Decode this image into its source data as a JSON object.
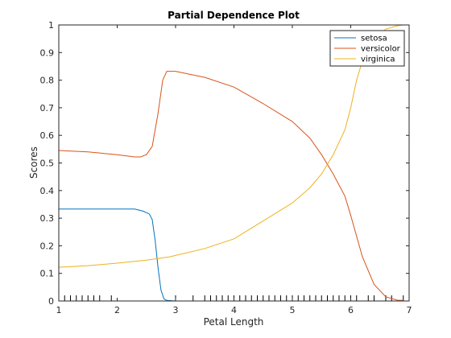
{
  "chart_data": {
    "type": "line",
    "title": "Partial Dependence Plot",
    "xlabel": "Petal Length",
    "ylabel": "Scores",
    "xlim": [
      1,
      7
    ],
    "ylim": [
      0,
      1
    ],
    "x_ticks": [
      1,
      2,
      3,
      4,
      5,
      6,
      7
    ],
    "y_ticks": [
      0,
      0.1,
      0.2,
      0.3,
      0.4,
      0.5,
      0.6,
      0.7,
      0.8,
      0.9,
      1
    ],
    "x_tick_labels": [
      "1",
      "2",
      "3",
      "4",
      "5",
      "6",
      "7"
    ],
    "y_tick_labels": [
      "0",
      "0.1",
      "0.2",
      "0.3",
      "0.4",
      "0.5",
      "0.6",
      "0.7",
      "0.8",
      "0.9",
      "1"
    ],
    "grid": false,
    "legend_position": "top-right",
    "series": [
      {
        "name": "setosa",
        "color": "#0072BD",
        "points": [
          [
            1,
            0.333
          ],
          [
            1.5,
            0.333
          ],
          [
            2.0,
            0.333
          ],
          [
            2.3,
            0.333
          ],
          [
            2.45,
            0.325
          ],
          [
            2.55,
            0.315
          ],
          [
            2.6,
            0.295
          ],
          [
            2.65,
            0.22
          ],
          [
            2.7,
            0.12
          ],
          [
            2.75,
            0.04
          ],
          [
            2.8,
            0.008
          ],
          [
            2.85,
            0.002
          ],
          [
            3.0,
            0
          ],
          [
            4.0,
            0
          ],
          [
            5.0,
            0
          ],
          [
            6.0,
            0
          ],
          [
            6.9,
            0
          ]
        ]
      },
      {
        "name": "versicolor",
        "color": "#D95319",
        "points": [
          [
            1,
            0.545
          ],
          [
            1.5,
            0.54
          ],
          [
            2.0,
            0.53
          ],
          [
            2.3,
            0.522
          ],
          [
            2.4,
            0.522
          ],
          [
            2.5,
            0.53
          ],
          [
            2.6,
            0.56
          ],
          [
            2.7,
            0.68
          ],
          [
            2.78,
            0.8
          ],
          [
            2.85,
            0.832
          ],
          [
            3.0,
            0.832
          ],
          [
            3.5,
            0.81
          ],
          [
            4.0,
            0.775
          ],
          [
            4.5,
            0.715
          ],
          [
            5.0,
            0.65
          ],
          [
            5.3,
            0.59
          ],
          [
            5.5,
            0.53
          ],
          [
            5.7,
            0.46
          ],
          [
            5.9,
            0.38
          ],
          [
            6.0,
            0.31
          ],
          [
            6.2,
            0.16
          ],
          [
            6.4,
            0.06
          ],
          [
            6.6,
            0.015
          ],
          [
            6.8,
            0.003
          ],
          [
            6.9,
            0.002
          ]
        ]
      },
      {
        "name": "virginica",
        "color": "#EDB120",
        "points": [
          [
            1,
            0.122
          ],
          [
            1.5,
            0.128
          ],
          [
            2.0,
            0.137
          ],
          [
            2.5,
            0.148
          ],
          [
            2.9,
            0.16
          ],
          [
            3.0,
            0.165
          ],
          [
            3.5,
            0.19
          ],
          [
            4.0,
            0.225
          ],
          [
            4.5,
            0.29
          ],
          [
            5.0,
            0.355
          ],
          [
            5.3,
            0.41
          ],
          [
            5.5,
            0.46
          ],
          [
            5.7,
            0.53
          ],
          [
            5.9,
            0.62
          ],
          [
            6.0,
            0.7
          ],
          [
            6.1,
            0.8
          ],
          [
            6.2,
            0.87
          ],
          [
            6.4,
            0.95
          ],
          [
            6.6,
            0.985
          ],
          [
            6.8,
            0.997
          ],
          [
            6.9,
            1.0
          ]
        ]
      }
    ],
    "rug_x": [
      1.0,
      1.1,
      1.2,
      1.3,
      1.4,
      1.5,
      1.6,
      1.7,
      1.9,
      3.0,
      3.3,
      3.5,
      3.6,
      3.7,
      3.8,
      3.9,
      4.0,
      4.1,
      4.2,
      4.3,
      4.4,
      4.5,
      4.6,
      4.7,
      4.8,
      4.9,
      5.0,
      5.1,
      5.2,
      5.3,
      5.4,
      5.5,
      5.6,
      5.7,
      5.8,
      5.9,
      6.0,
      6.1,
      6.3,
      6.4,
      6.6,
      6.7,
      6.9
    ]
  }
}
